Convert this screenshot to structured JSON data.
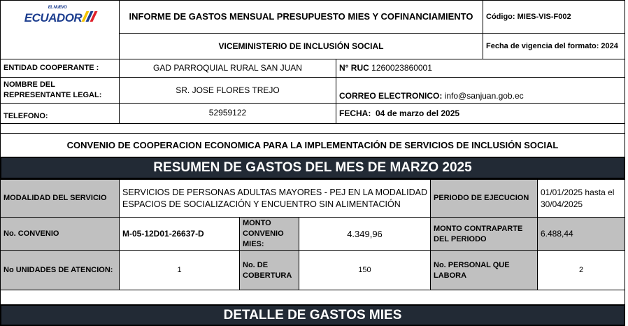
{
  "header": {
    "logo_text": "ECUADOR",
    "logo_small": "EL NUEVO",
    "title": "INFORME DE GASTOS MENSUAL PRESUPUESTO MIES Y COFINANCIAMIENTO",
    "subtitle": "VICEMINISTERIO DE INCLUSIÓN SOCIAL",
    "codigo": "Código: MIES-VIS-F002",
    "vigencia": "Fecha de vigencia del formato: 2024"
  },
  "entity": {
    "entidad_label": "ENTIDAD COOPERANTE :",
    "entidad_value": "GAD PARROQUIAL RURAL SAN JUAN",
    "ruc_label": "N° RUC",
    "ruc_value": "1260023860001",
    "rep_label": "NOMBRE DEL REPRESENTANTE LEGAL:",
    "rep_value": "SR. JOSE FLORES TREJO",
    "correo_label": "CORREO ELECTRONICO:",
    "correo_value": "info@sanjuan.gob.ec",
    "telefono_label": "TELEFONO:",
    "telefono_value": "52959122",
    "fecha_label": "FECHA:",
    "fecha_value": "04 de marzo del 2025"
  },
  "convenio_title": "CONVENIO DE COOPERACION ECONOMICA PARA LA IMPLEMENTACIÓN DE SERVICIOS DE INCLUSIÓN SOCIAL",
  "resumen_title": "RESUMEN DE GASTOS  DEL MES DE MARZO 2025",
  "summary": {
    "modalidad_label": "MODALIDAD DEL SERVICIO",
    "modalidad_value": "SERVICIOS DE PERSONAS ADULTAS MAYORES - PEJ EN LA MODALIDAD ESPACIOS DE SOCIALIZACIÓN Y ENCUENTRO SIN ALIMENTACIÓN",
    "periodo_label": "PERIODO DE EJECUCION",
    "periodo_value": "01/01/2025 hasta el 30/04/2025",
    "convenio_label": "No. CONVENIO",
    "convenio_value": "M-05-12D01-26637-D",
    "monto_label": "MONTO CONVENIO MIES:",
    "monto_value": "4.349,96",
    "contraparte_label": "MONTO CONTRAPARTE DEL PERIODO",
    "contraparte_value": "6.488,44",
    "unidades_label": "No UNIDADES DE ATENCION:",
    "unidades_value": "1",
    "cobertura_label": "No. DE COBERTURA",
    "cobertura_value": "150",
    "personal_label": "No. PERSONAL QUE LABORA",
    "personal_value": "2"
  },
  "detalle_title": "DETALLE DE GASTOS  MIES"
}
